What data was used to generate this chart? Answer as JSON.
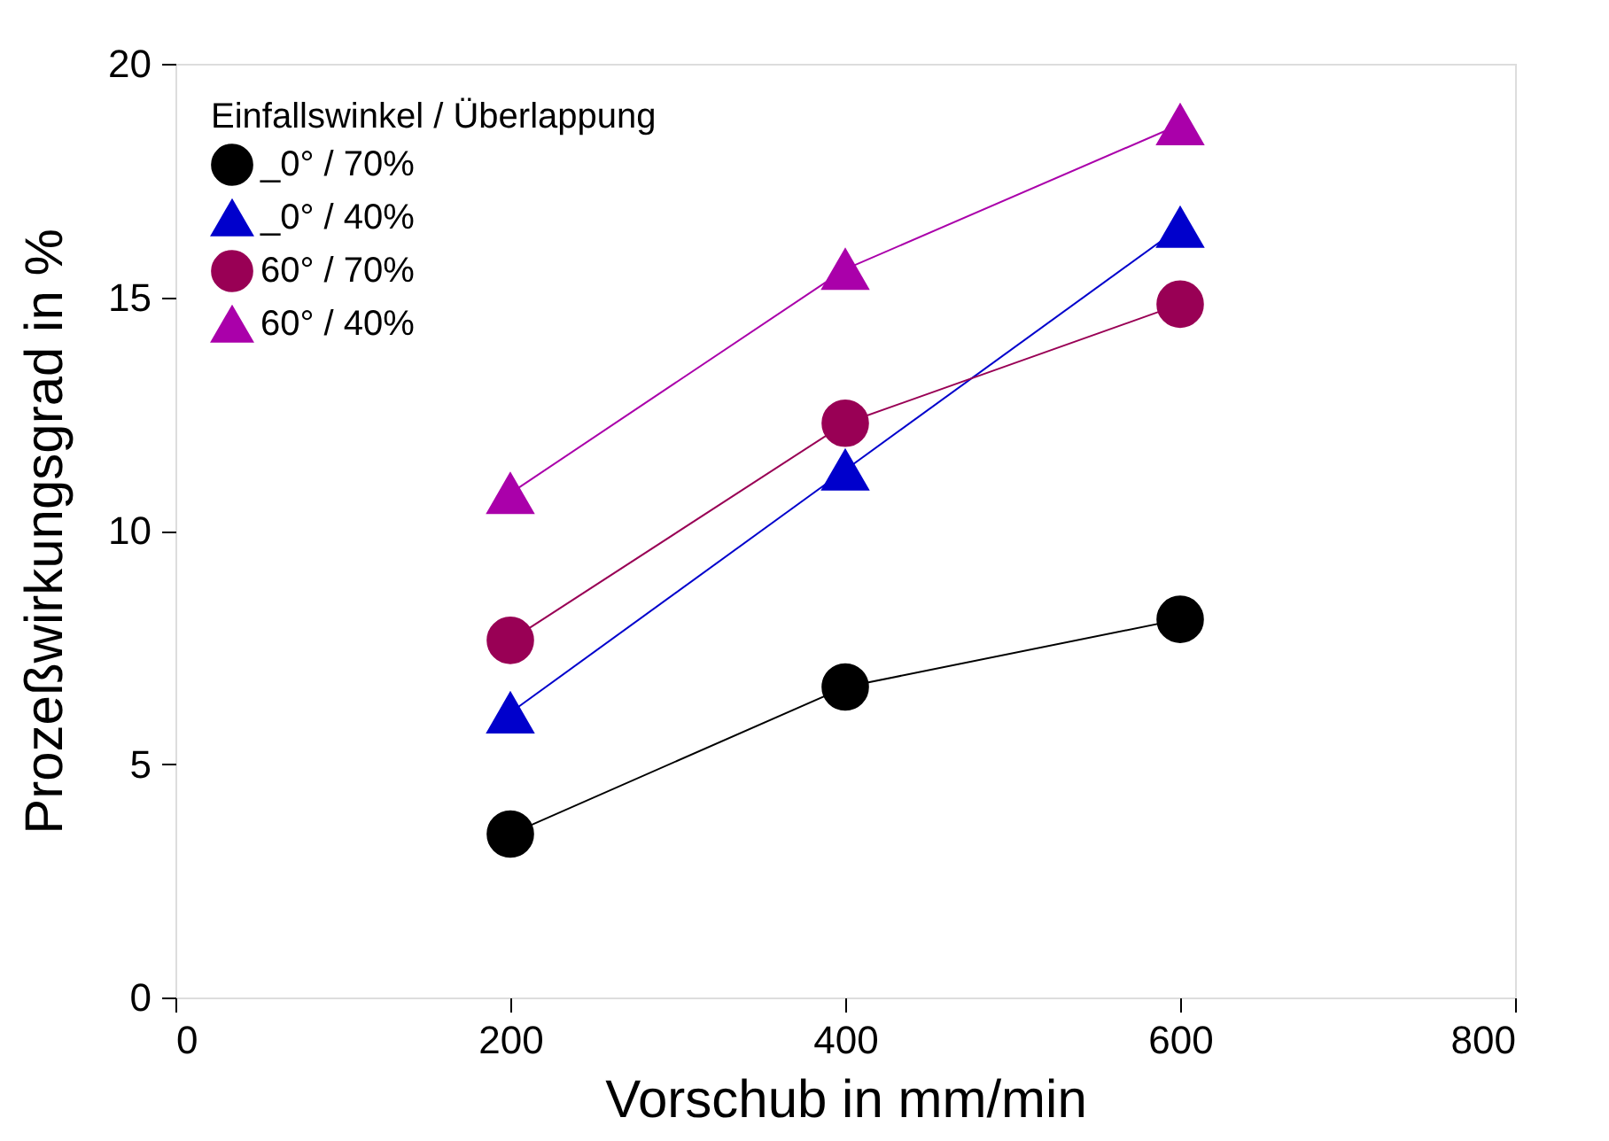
{
  "chart_data": {
    "type": "line",
    "xlabel": "Vorschub in mm/min",
    "ylabel": "Prozeßwirkungsgrad in %",
    "legend_title": "Einfallswinkel / Überlappung",
    "x": [
      200,
      400,
      600
    ],
    "series": [
      {
        "name": "_0° / 70%",
        "color": "#000000",
        "marker": "circle",
        "values": [
          3.5,
          6.65,
          8.1
        ]
      },
      {
        "name": "_0° / 40%",
        "color": "#0000cc",
        "marker": "triangle",
        "values": [
          6.1,
          11.3,
          16.5
        ]
      },
      {
        "name": "60° / 70%",
        "color": "#990055",
        "marker": "circle",
        "values": [
          7.65,
          12.3,
          14.85
        ]
      },
      {
        "name": "60° / 40%",
        "color": "#aa00aa",
        "marker": "triangle",
        "values": [
          10.8,
          15.6,
          18.7
        ]
      }
    ],
    "xlim": [
      0,
      800
    ],
    "xticks": [
      0,
      200,
      400,
      600,
      800
    ],
    "ylim": [
      0,
      20
    ],
    "yticks": [
      0,
      5,
      10,
      15,
      20
    ],
    "grid": false,
    "legend": "top left"
  }
}
